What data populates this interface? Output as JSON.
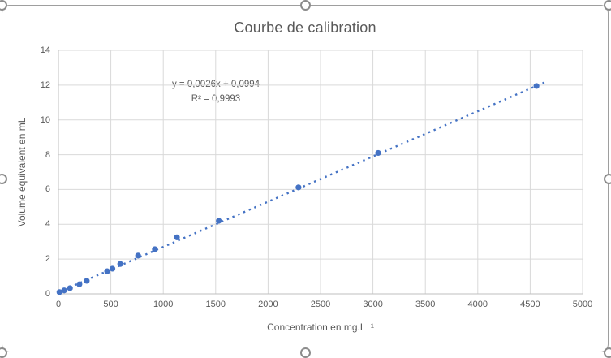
{
  "colors": {
    "accent": "#4472C4",
    "text": "#595959",
    "gridline": "#D9D9D9",
    "axis_line": "#BFBFBF",
    "chart_border": "#9e9e9e",
    "handle_border": "#8c8c8c"
  },
  "chart_data": {
    "type": "scatter",
    "title": "Courbe de calibration",
    "xlabel": "Concentration en mg.L⁻¹",
    "ylabel": "Volume équivalent en mL",
    "xlim": [
      0,
      5000
    ],
    "ylim": [
      0,
      14
    ],
    "x_ticks": [
      0,
      500,
      1000,
      1500,
      2000,
      2500,
      3000,
      3500,
      4000,
      4500,
      5000
    ],
    "y_ticks": [
      0,
      2,
      4,
      6,
      8,
      10,
      12,
      14
    ],
    "grid": true,
    "legend": false,
    "series": [
      {
        "name": "Volume équivalent",
        "marker": "circle",
        "points": [
          [
            10,
            0.1
          ],
          [
            55,
            0.2
          ],
          [
            110,
            0.33
          ],
          [
            200,
            0.55
          ],
          [
            270,
            0.75
          ],
          [
            465,
            1.3
          ],
          [
            515,
            1.45
          ],
          [
            590,
            1.72
          ],
          [
            760,
            2.2
          ],
          [
            920,
            2.57
          ],
          [
            1130,
            3.25
          ],
          [
            1530,
            4.2
          ],
          [
            2290,
            6.12
          ],
          [
            3050,
            8.1
          ],
          [
            4560,
            11.95
          ]
        ]
      }
    ],
    "trendline": {
      "type": "linear",
      "slope": 0.0026,
      "intercept": 0.0994,
      "x_start": 0,
      "x_end": 4640,
      "style": "dotted",
      "equation_label": "y = 0,0026x + 0,0994",
      "r_squared_label": "R² = 0,9993"
    }
  }
}
